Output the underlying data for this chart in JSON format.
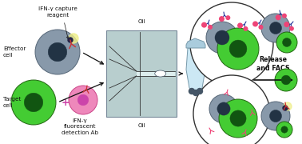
{
  "bg_color": "#ffffff",
  "fig_width": 3.78,
  "fig_height": 1.8,
  "dpi": 100,
  "gray_cell_color": "#8899aa",
  "gray_cell_edge": "#556677",
  "gray_nucleus_color": "#223344",
  "green_cell_color": "#44cc33",
  "green_cell_edge": "#226611",
  "green_nucleus_color": "#115511",
  "pink_cell_color": "#ee88bb",
  "pink_cell_edge": "#cc4488",
  "pink_nucleus_color": "#cc44aa",
  "capture_y_color": "#cc3333",
  "detection_y_color": "#cc3333",
  "antibody_blue": "#223399",
  "antibody_pink": "#ee4477",
  "chip_color": "#b8cece",
  "chip_edge": "#778899",
  "text_color": "#111111",
  "arrow_color": "#111111",
  "font_size": 5.2,
  "labels": {
    "ifn_capture": "IFN-γ capture\nreagent",
    "effector": "Effector\ncell",
    "target": "Target\ncell",
    "ifn_detection": "IFN-γ\nfluorescent\ndetection Ab",
    "oil_top": "Oil",
    "oil_bottom": "Oil",
    "release": "Release\nand FACS"
  }
}
